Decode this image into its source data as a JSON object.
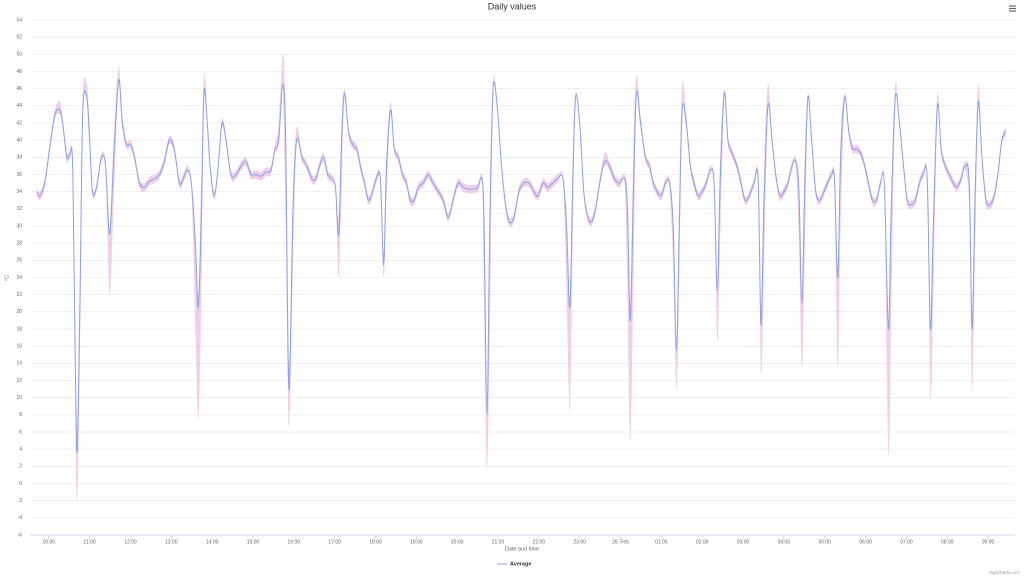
{
  "chart_data": {
    "type": "line",
    "title": "Daily values",
    "xlabel": "Date and time",
    "ylabel": "°C",
    "credits": "Highcharts.com",
    "legend": "bottom",
    "grid": true,
    "xlim": [
      9.54,
      33.66
    ],
    "xticks": [
      {
        "value": 10,
        "label": "10:00"
      },
      {
        "value": 11,
        "label": "11:00"
      },
      {
        "value": 12,
        "label": "12:00"
      },
      {
        "value": 13,
        "label": "13:00"
      },
      {
        "value": 14,
        "label": "14:00"
      },
      {
        "value": 15,
        "label": "15:00"
      },
      {
        "value": 16,
        "label": "16:00"
      },
      {
        "value": 17,
        "label": "17:00"
      },
      {
        "value": 18,
        "label": "18:00"
      },
      {
        "value": 19,
        "label": "19:00"
      },
      {
        "value": 20,
        "label": "20:00"
      },
      {
        "value": 21,
        "label": "21:00"
      },
      {
        "value": 22,
        "label": "22:00"
      },
      {
        "value": 23,
        "label": "23:00"
      },
      {
        "value": 24,
        "label": "26. Feb"
      },
      {
        "value": 25,
        "label": "01:00"
      },
      {
        "value": 26,
        "label": "02:00"
      },
      {
        "value": 27,
        "label": "03:00"
      },
      {
        "value": 28,
        "label": "04:00"
      },
      {
        "value": 29,
        "label": "05:00"
      },
      {
        "value": 30,
        "label": "06:00"
      },
      {
        "value": 31,
        "label": "07:00"
      },
      {
        "value": 32,
        "label": "08:00"
      },
      {
        "value": 33,
        "label": "09:00"
      }
    ],
    "ylim": [
      -6,
      54
    ],
    "yticks": [
      -6,
      -4,
      -2,
      0,
      2,
      4,
      6,
      8,
      10,
      12,
      14,
      16,
      18,
      20,
      22,
      24,
      26,
      28,
      30,
      32,
      34,
      36,
      38,
      40,
      42,
      44,
      46,
      48,
      50,
      52,
      54
    ],
    "x": [
      9.71,
      9.78,
      9.9,
      10.02,
      10.15,
      10.27,
      10.34,
      10.44,
      10.51,
      10.59,
      10.68,
      10.76,
      10.83,
      10.93,
      11.0,
      11.07,
      11.17,
      11.29,
      11.39,
      11.49,
      11.59,
      11.71,
      11.8,
      11.9,
      12.0,
      12.1,
      12.22,
      12.34,
      12.46,
      12.59,
      12.71,
      12.83,
      12.95,
      13.07,
      13.2,
      13.29,
      13.39,
      13.49,
      13.59,
      13.66,
      13.73,
      13.8,
      13.88,
      13.95,
      14.05,
      14.15,
      14.24,
      14.34,
      14.46,
      14.59,
      14.71,
      14.83,
      14.95,
      15.07,
      15.2,
      15.32,
      15.44,
      15.54,
      15.63,
      15.73,
      15.8,
      15.88,
      15.98,
      16.07,
      16.2,
      16.32,
      16.44,
      16.54,
      16.63,
      16.73,
      16.83,
      16.93,
      17.02,
      17.1,
      17.17,
      17.24,
      17.34,
      17.44,
      17.54,
      17.63,
      17.73,
      17.83,
      17.93,
      18.02,
      18.12,
      18.2,
      18.27,
      18.37,
      18.46,
      18.56,
      18.66,
      18.76,
      18.85,
      18.95,
      19.05,
      19.17,
      19.29,
      19.41,
      19.54,
      19.66,
      19.78,
      19.9,
      20.02,
      20.15,
      20.27,
      20.39,
      20.51,
      20.61,
      20.66,
      20.73,
      20.8,
      20.88,
      20.98,
      21.07,
      21.17,
      21.27,
      21.39,
      21.51,
      21.63,
      21.76,
      21.88,
      21.98,
      22.1,
      22.22,
      22.34,
      22.46,
      22.59,
      22.68,
      22.76,
      22.83,
      22.9,
      23.0,
      23.1,
      23.2,
      23.29,
      23.39,
      23.49,
      23.61,
      23.73,
      23.85,
      23.98,
      24.1,
      24.17,
      24.24,
      24.32,
      24.39,
      24.49,
      24.61,
      24.71,
      24.8,
      24.9,
      25.0,
      25.1,
      25.2,
      25.29,
      25.37,
      25.44,
      25.51,
      25.61,
      25.71,
      25.8,
      25.9,
      26.0,
      26.1,
      26.2,
      26.29,
      26.37,
      26.44,
      26.54,
      26.63,
      26.73,
      26.85,
      26.95,
      27.05,
      27.15,
      27.27,
      27.37,
      27.44,
      27.51,
      27.61,
      27.71,
      27.8,
      27.9,
      28.0,
      28.1,
      28.2,
      28.29,
      28.37,
      28.44,
      28.51,
      28.59,
      28.68,
      28.78,
      28.88,
      28.98,
      29.07,
      29.17,
      29.24,
      29.32,
      29.39,
      29.49,
      29.59,
      29.68,
      29.78,
      29.88,
      29.98,
      30.07,
      30.17,
      30.27,
      30.37,
      30.46,
      30.56,
      30.63,
      30.73,
      30.83,
      30.93,
      31.02,
      31.12,
      31.22,
      31.32,
      31.41,
      31.51,
      31.59,
      31.66,
      31.76,
      31.85,
      31.95,
      32.05,
      32.15,
      32.24,
      32.34,
      32.44,
      32.54,
      32.61,
      32.68,
      32.76,
      32.85,
      32.95,
      33.05,
      33.15,
      33.24,
      33.34,
      33.44
    ],
    "series": [
      {
        "name": "Average",
        "color": "#8c9fe8",
        "values": [
          34,
          33.5,
          35,
          39,
          43,
          43.5,
          42,
          38,
          38.2,
          36,
          4,
          20,
          43,
          45,
          40,
          34,
          34.5,
          38,
          37,
          29,
          38,
          47,
          42,
          39.5,
          39.5,
          38,
          35,
          34.5,
          35.2,
          35.5,
          36,
          37.5,
          40,
          39,
          35,
          35.5,
          36.5,
          35,
          28,
          20.5,
          30,
          45.5,
          42,
          37,
          33.5,
          37,
          42,
          40,
          36,
          36,
          37,
          37.5,
          36,
          36,
          35.8,
          36.3,
          36.5,
          39,
          40,
          46.5,
          40,
          11,
          32,
          40,
          38,
          37,
          35.5,
          35.5,
          37,
          38,
          36,
          35.5,
          34.5,
          29,
          40,
          45.5,
          41,
          39.5,
          39,
          37,
          35,
          33,
          34,
          35.5,
          35.5,
          25.5,
          37,
          43.5,
          39,
          38,
          36,
          35,
          33,
          33,
          34.5,
          35,
          36,
          35,
          34,
          33,
          31,
          33,
          35,
          34.5,
          34.3,
          34.3,
          34.5,
          35.5,
          30,
          8,
          30,
          46,
          44,
          38,
          33,
          30.5,
          31,
          34,
          35,
          35,
          34,
          33.5,
          35,
          34.5,
          35,
          35.5,
          35.5,
          30,
          20.5,
          35,
          45,
          42,
          34,
          31,
          30.5,
          32,
          35,
          37.5,
          37,
          35.5,
          35,
          35.5,
          32,
          19,
          35,
          45.5,
          42,
          38,
          37,
          35,
          34,
          33.5,
          35,
          35,
          30,
          15.5,
          30,
          43.5,
          42,
          37,
          35,
          33.5,
          34,
          35,
          36.5,
          35,
          22.5,
          35,
          45.5,
          40,
          38.5,
          37,
          35,
          33,
          33.5,
          35,
          35.5,
          18.5,
          32,
          44,
          40,
          36,
          33.5,
          34,
          35,
          37,
          37.5,
          34,
          21,
          34,
          45,
          40,
          34,
          33,
          34,
          35,
          36,
          35.5,
          24,
          38,
          45,
          41,
          39,
          39,
          38.5,
          37,
          35,
          33,
          33,
          35,
          35,
          18,
          32,
          45,
          42,
          37,
          33,
          32.5,
          33,
          35,
          36,
          35.5,
          18,
          30,
          44,
          39,
          37,
          36,
          35,
          34.5,
          35.5,
          37,
          35,
          18,
          33,
          44.5,
          38,
          33,
          32.5,
          33.5,
          36,
          40,
          41
        ]
      },
      {
        "type": "arearange",
        "color": "#ecc3e3",
        "low": [
          33.5,
          33,
          34.5,
          38.5,
          42.5,
          43,
          41.5,
          37.5,
          37.7,
          35.5,
          -1.5,
          14,
          42.5,
          44.5,
          39.5,
          33.5,
          34,
          37.5,
          36.5,
          22,
          33,
          46.5,
          41.5,
          39,
          39,
          37.5,
          34.5,
          34,
          34.7,
          35,
          35.5,
          37,
          39.5,
          38.5,
          34.5,
          35,
          36,
          34.5,
          18,
          7.5,
          20,
          45,
          41.5,
          36.5,
          33,
          36.5,
          41.5,
          39.5,
          35.5,
          35.5,
          36.5,
          37,
          35.5,
          35.5,
          35.3,
          35.8,
          36,
          38.5,
          39.5,
          46,
          30,
          6.5,
          25,
          39.5,
          37.5,
          36.5,
          35,
          35,
          36.5,
          37.5,
          35.5,
          35,
          34,
          24,
          34,
          45,
          40.5,
          39,
          38.5,
          36.5,
          34.5,
          32.5,
          33.5,
          35,
          35,
          24,
          33,
          43,
          38.5,
          37.5,
          35.5,
          34.5,
          32.5,
          32.5,
          34,
          34.5,
          35.5,
          34.5,
          33.5,
          32.5,
          30.5,
          32.5,
          34.5,
          34,
          33.8,
          33.8,
          34,
          35,
          20,
          1.5,
          18,
          45.5,
          43.5,
          37.5,
          32.5,
          30,
          30.5,
          33.5,
          34.5,
          34.5,
          33.5,
          33,
          34.5,
          34,
          34.5,
          35,
          35,
          22,
          8.5,
          28,
          44.5,
          41.5,
          33.5,
          30.5,
          30,
          31.5,
          34.5,
          37,
          36.5,
          35,
          34.5,
          35,
          22,
          5,
          25,
          45,
          41.5,
          37.5,
          36.5,
          34.5,
          33.5,
          33,
          34.5,
          34.5,
          25,
          11,
          24,
          43,
          41.5,
          36.5,
          34.5,
          33,
          33.5,
          34.5,
          36,
          34.5,
          16.5,
          28,
          45,
          39.5,
          38,
          36.5,
          34.5,
          32.5,
          33,
          34.5,
          35,
          13,
          24,
          43.5,
          39.5,
          35.5,
          33,
          33.5,
          34.5,
          36.5,
          37,
          28,
          13.5,
          26,
          44.5,
          39.5,
          33.5,
          32.5,
          33.5,
          34.5,
          35.5,
          34,
          13.5,
          30,
          44.5,
          40.5,
          38.5,
          38.5,
          38,
          36.5,
          34.5,
          32.5,
          32.5,
          34.5,
          34.5,
          3.5,
          20,
          44.5,
          41.5,
          36.5,
          32.5,
          32,
          32.5,
          34.5,
          35.5,
          35,
          10,
          22,
          43.5,
          38.5,
          36.5,
          35.5,
          34.5,
          34,
          35,
          36.5,
          32,
          11,
          26,
          44,
          37.5,
          32.5,
          32,
          33,
          35.5,
          39.5,
          40.5
        ],
        "high": [
          34.5,
          34,
          35.5,
          39.5,
          43.5,
          44.5,
          42.5,
          38.5,
          38.7,
          36.5,
          6,
          24,
          45,
          46.5,
          42,
          34.5,
          35,
          38.5,
          37.5,
          30,
          40,
          48.5,
          43,
          40,
          40,
          38.5,
          35.5,
          35,
          35.7,
          36,
          36.5,
          38,
          40.5,
          39.5,
          35.5,
          36,
          37,
          35.5,
          29,
          22,
          35,
          47.5,
          43,
          37.5,
          34,
          37.5,
          42.5,
          40.5,
          36.5,
          36.5,
          37.5,
          38,
          36.5,
          36.5,
          36.3,
          36.8,
          37,
          39.5,
          42,
          50,
          43,
          14,
          34,
          41.5,
          38.5,
          37.5,
          36,
          36,
          37.5,
          38.5,
          36.5,
          36,
          35,
          31,
          42,
          46,
          41.5,
          40,
          39.5,
          37.5,
          35.5,
          33.5,
          34.5,
          36,
          36,
          27,
          38,
          44.5,
          39.5,
          38.5,
          36.5,
          35.5,
          33.5,
          33.5,
          35,
          35.5,
          36.5,
          35.5,
          34.5,
          33.5,
          31.5,
          33.5,
          35.5,
          35,
          34.8,
          34.8,
          35,
          36,
          31,
          10,
          34,
          47,
          44.5,
          38.5,
          33.5,
          31,
          31.5,
          34.5,
          35.5,
          35.5,
          34.5,
          34,
          35.5,
          35,
          35.5,
          36,
          36,
          31,
          22,
          38,
          45.5,
          42.5,
          34.5,
          31.5,
          31,
          32.5,
          35.5,
          38.5,
          37.5,
          36,
          35.5,
          36,
          33,
          21,
          40,
          47.5,
          43,
          38.5,
          37.5,
          35.5,
          34.5,
          34,
          35.5,
          35.5,
          31,
          17,
          34,
          46.5,
          43,
          37.5,
          35.5,
          34,
          34.5,
          35.5,
          37,
          35.5,
          24,
          38,
          46,
          40.5,
          39,
          37.5,
          35.5,
          33.5,
          34,
          35.5,
          36,
          20,
          36,
          46.5,
          40.5,
          36.5,
          34,
          34.5,
          35.5,
          37.5,
          38,
          35,
          22,
          38,
          45.5,
          40.5,
          34.5,
          33.5,
          34.5,
          35.5,
          36.5,
          36,
          25,
          40,
          45.5,
          41.5,
          39.5,
          39.5,
          39,
          37.5,
          35.5,
          33.5,
          33.5,
          35.5,
          35.5,
          19,
          34,
          46.5,
          42.5,
          37.5,
          33.5,
          33,
          33.5,
          35.5,
          36.5,
          36,
          19,
          32,
          45.5,
          39.5,
          37.5,
          36.5,
          35.5,
          35,
          36,
          37.5,
          35.5,
          19,
          35,
          46.5,
          38.5,
          33.5,
          33,
          34,
          36.5,
          40.5,
          41.5
        ]
      }
    ]
  }
}
